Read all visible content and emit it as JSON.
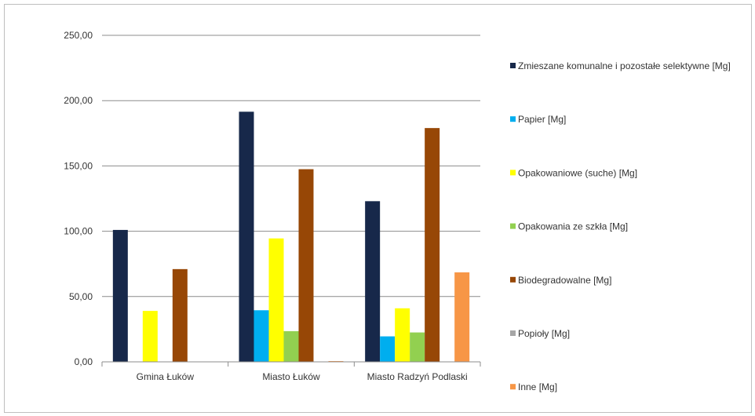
{
  "chart_data": {
    "type": "bar",
    "title": "",
    "xlabel": "",
    "ylabel": "",
    "ylim": [
      0,
      250
    ],
    "y_ticks": [
      "0,00",
      "50,00",
      "100,00",
      "150,00",
      "200,00",
      "250,00"
    ],
    "grid": true,
    "legend_position": "right",
    "categories": [
      "Gmina Łuków",
      "Miasto Łuków",
      "Miasto Radzyń Podlaski"
    ],
    "series": [
      {
        "name": "Zmieszane komunalne i pozostałe selektywne [Mg]",
        "color": "#17284a",
        "values": [
          101,
          191.5,
          123
        ]
      },
      {
        "name": "Papier [Mg]",
        "color": "#00aeef",
        "values": [
          0,
          39.5,
          19.5
        ]
      },
      {
        "name": "Opakowaniowe (suche) [Mg]",
        "color": "#ffff00",
        "values": [
          39,
          94.5,
          41
        ]
      },
      {
        "name": "Opakowania ze szkła [Mg]",
        "color": "#92d050",
        "values": [
          0,
          23.5,
          22.5
        ]
      },
      {
        "name": "Biodegradowalne [Mg]",
        "color": "#974706",
        "values": [
          71,
          147.5,
          179
        ]
      },
      {
        "name": "Popioły [Mg]",
        "color": "#a6a6a6",
        "values": [
          0,
          0,
          0
        ]
      },
      {
        "name": "Inne [Mg]",
        "color": "#f79646",
        "values": [
          0,
          0.5,
          68.5
        ]
      }
    ]
  }
}
